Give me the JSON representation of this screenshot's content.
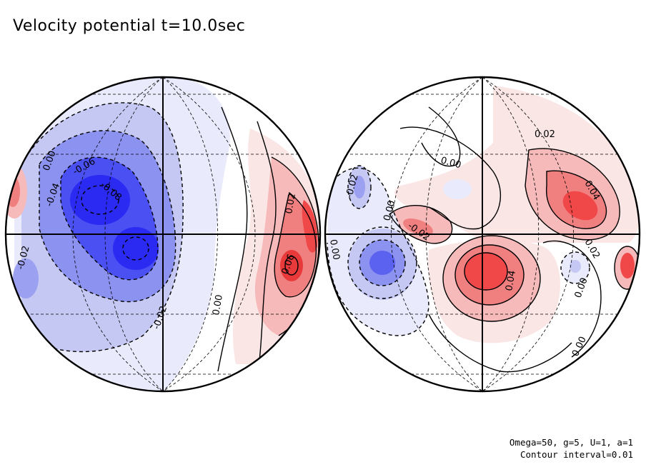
{
  "title": "Velocity potential t=10.0sec",
  "footer": {
    "params": "Omega=50, g=5, U=1, a=1",
    "contour_interval": "Contour interval=0.01"
  },
  "colors": {
    "negative_strong": "#2a2af2",
    "negative_mid": "#7f85f0",
    "negative_light": "#c5c8f3",
    "negative_faint": "#e9eafb",
    "positive_faint": "#fbe6e6",
    "positive_light": "#f6baba",
    "positive_mid": "#f08080",
    "positive_strong": "#f04848"
  },
  "left_hemisphere": {
    "labels": [
      "0.00",
      "-0.06",
      "-0.08",
      "-0.04",
      "-0.02",
      "-0.02",
      "0.00",
      "0.02",
      "0.06"
    ]
  },
  "right_hemisphere": {
    "labels": [
      "0.02",
      "0.00",
      "0.04",
      "-0.02",
      "0.00",
      "-0.02",
      "0.00",
      "0.02",
      "0.04",
      "0.00",
      "0.00"
    ]
  }
}
